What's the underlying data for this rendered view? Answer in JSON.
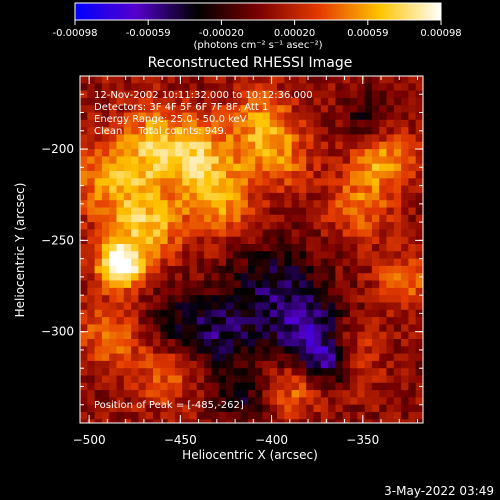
{
  "colorbar": {
    "ticks": [
      "-0.00098",
      "-0.00059",
      "-0.00020",
      "0.00020",
      "0.00059",
      "0.00098"
    ],
    "unit_label": "(photons cm⁻² s⁻¹ asec⁻²)",
    "range": [
      -0.00098,
      0.00098
    ],
    "colors": [
      "#0000ff",
      "#5500cc",
      "#000000",
      "#7a0000",
      "#e43a00",
      "#ffc400",
      "#ffffff"
    ]
  },
  "info": {
    "line1": "12-Nov-2002 10:11:32.000 to 10:12:36.000",
    "line2": "Detectors: 3F 4F 5F 6F 7F 8F, Att 1",
    "line3": "Energy Range: 25.0 - 50.0 keV",
    "line4": "Clean     Total counts: 949.",
    "peak": "Position of Peak = [-485,-262]"
  },
  "footer": {
    "date": "3-May-2022 03:49"
  },
  "chart_data": {
    "type": "heatmap",
    "title": "Reconstructed RHESSI Image",
    "xlabel": "Heliocentric X (arcsec)",
    "ylabel": "Heliocentric Y (arcsec)",
    "xlim": [
      -505,
      -317
    ],
    "ylim": [
      -350,
      -160
    ],
    "xticks": [
      -500,
      -450,
      -400,
      -350
    ],
    "yticks": [
      -200,
      -250,
      -300
    ],
    "xtick_labels": [
      "−500",
      "−450",
      "−400",
      "−350"
    ],
    "ytick_labels": [
      "−200",
      "−250",
      "−300"
    ],
    "peak": [
      -485,
      -262
    ],
    "blobs": [
      {
        "x": -485,
        "y": -262,
        "amp": 1.0,
        "r": 9
      },
      {
        "x": -470,
        "y": -240,
        "amp": 0.55,
        "r": 14
      },
      {
        "x": -490,
        "y": -215,
        "amp": 0.45,
        "r": 16
      },
      {
        "x": -465,
        "y": -195,
        "amp": 0.5,
        "r": 15
      },
      {
        "x": -440,
        "y": -205,
        "amp": 0.55,
        "r": 14
      },
      {
        "x": -430,
        "y": -230,
        "amp": 0.45,
        "r": 12
      },
      {
        "x": -400,
        "y": -200,
        "amp": 0.45,
        "r": 14
      },
      {
        "x": -410,
        "y": -180,
        "amp": 0.35,
        "r": 12
      },
      {
        "x": -340,
        "y": -205,
        "amp": 0.5,
        "r": 12
      },
      {
        "x": -355,
        "y": -230,
        "amp": 0.4,
        "r": 12
      },
      {
        "x": -330,
        "y": -270,
        "amp": 0.4,
        "r": 10
      },
      {
        "x": -360,
        "y": -310,
        "amp": 0.35,
        "r": 12
      },
      {
        "x": -390,
        "y": -330,
        "amp": 0.35,
        "r": 10
      },
      {
        "x": -460,
        "y": -320,
        "amp": 0.35,
        "r": 13
      },
      {
        "x": -490,
        "y": -300,
        "amp": 0.4,
        "r": 12
      },
      {
        "x": -455,
        "y": -295,
        "amp": -0.3,
        "r": 14
      },
      {
        "x": -400,
        "y": -275,
        "amp": -0.45,
        "r": 18
      },
      {
        "x": -380,
        "y": -300,
        "amp": -0.55,
        "r": 14
      },
      {
        "x": -370,
        "y": -315,
        "amp": -0.6,
        "r": 8
      },
      {
        "x": -430,
        "y": -300,
        "amp": -0.4,
        "r": 14
      },
      {
        "x": -350,
        "y": -180,
        "amp": -0.3,
        "r": 10
      },
      {
        "x": -420,
        "y": -335,
        "amp": -0.35,
        "r": 10
      }
    ]
  }
}
